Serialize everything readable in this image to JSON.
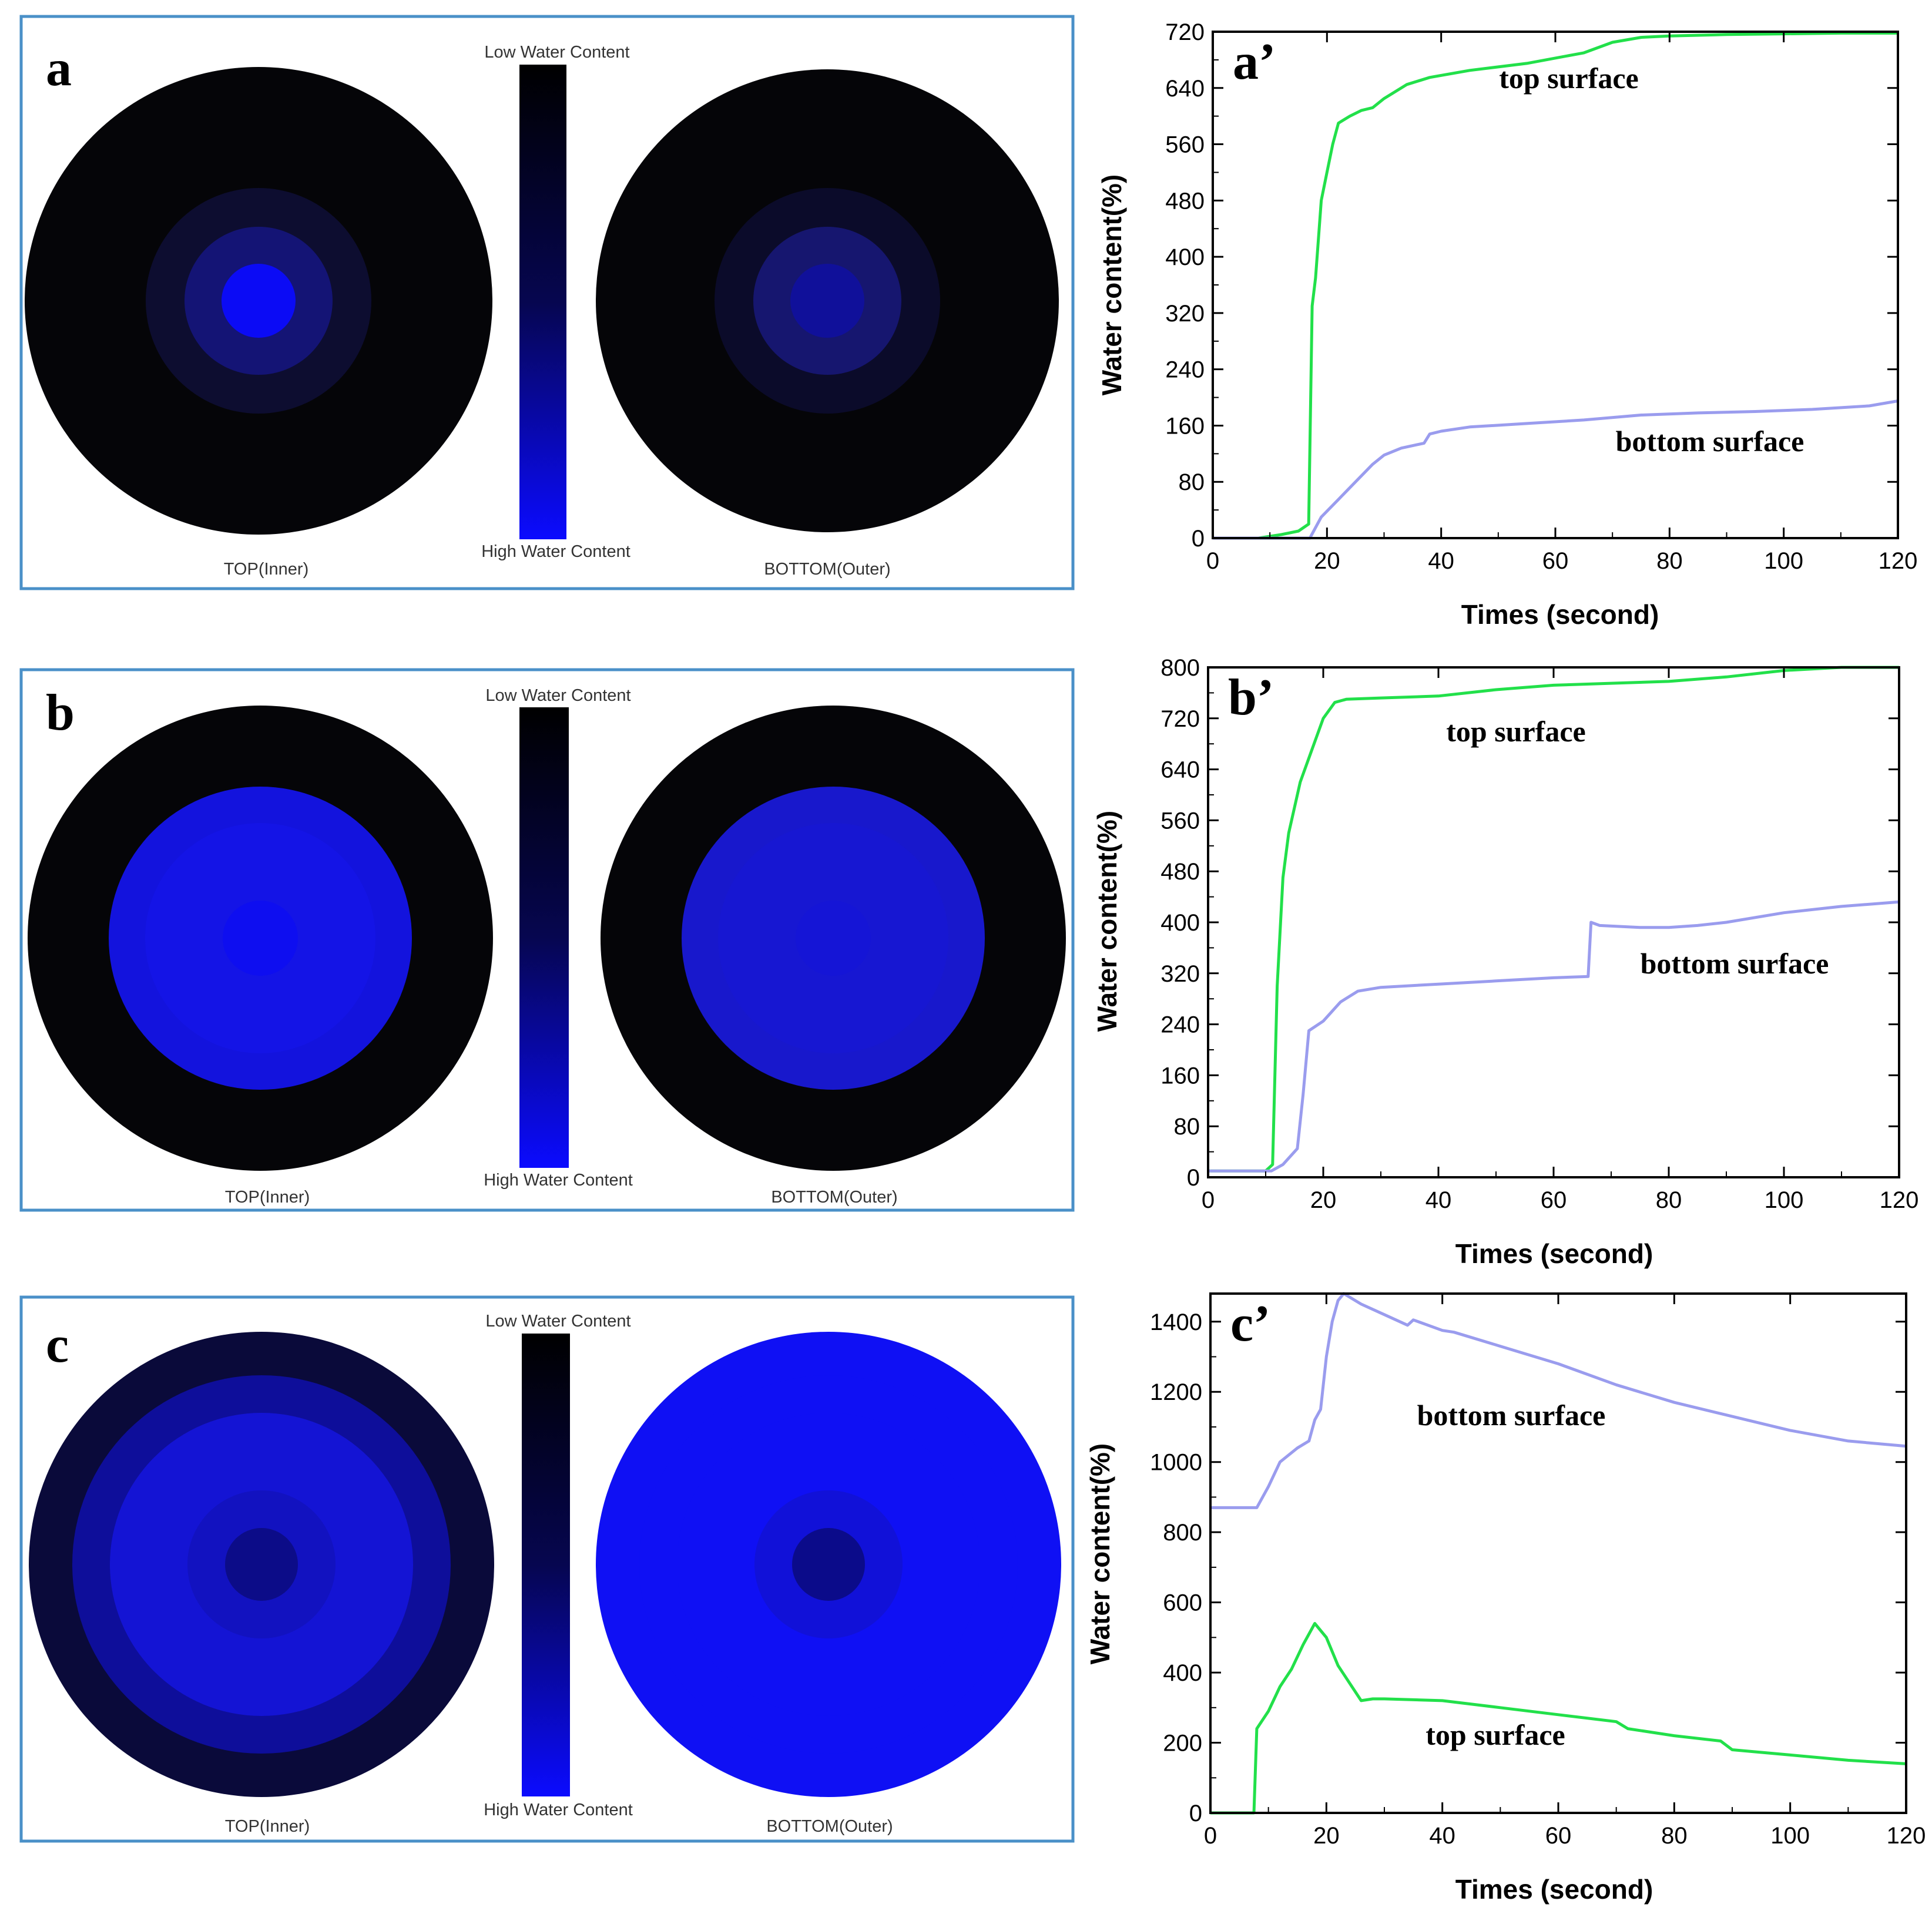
{
  "rows": [
    {
      "panel_letter": "a",
      "heatmap": {
        "colorbar_low": "Low Water Content",
        "colorbar_high": "High Water Content",
        "left_label": "TOP(Inner)",
        "right_label": "BOTTOM(Outer)",
        "left_rings": [
          "#050508",
          "#0d0d30",
          "#141475",
          "#0b0bf5"
        ],
        "right_rings": [
          "#050508",
          "#0b0b2a",
          "#16166f",
          "#10109a"
        ]
      },
      "chart_data": {
        "type": "line",
        "panel_label": "a’",
        "xlabel": "Times (second)",
        "ylabel": "Water content(%)",
        "xlim": [
          0,
          120
        ],
        "ylim": [
          0,
          720
        ],
        "xticks": [
          0,
          20,
          40,
          60,
          80,
          100,
          120
        ],
        "yticks": [
          0,
          80,
          160,
          240,
          320,
          400,
          480,
          560,
          640,
          720
        ],
        "grid": false,
        "series": [
          {
            "name": "top surface",
            "color": "#22e04a",
            "x": [
              0,
              8,
              12,
              15,
              16.8,
              17.4,
              18,
              19,
              20,
              21,
              22,
              24,
              26,
              28,
              30,
              34,
              36,
              38,
              45,
              55,
              65,
              70,
              75,
              80,
              90,
              100,
              110,
              120
            ],
            "y": [
              0,
              0,
              5,
              10,
              20,
              330,
              370,
              480,
              520,
              560,
              590,
              600,
              608,
              612,
              625,
              645,
              650,
              655,
              665,
              675,
              690,
              705,
              712,
              714,
              716,
              717,
              718,
              718
            ]
          },
          {
            "name": "bottom surface",
            "color": "#9a9cee",
            "x": [
              0,
              17,
              19,
              22,
              25,
              28,
              30,
              33,
              37,
              38,
              40,
              45,
              55,
              65,
              75,
              85,
              95,
              105,
              115,
              120
            ],
            "y": [
              0,
              0,
              30,
              55,
              80,
              105,
              118,
              128,
              135,
              148,
              152,
              158,
              163,
              168,
              175,
              178,
              180,
              183,
              188,
              195
            ]
          }
        ]
      }
    },
    {
      "panel_letter": "b",
      "heatmap": {
        "colorbar_low": "Low Water Content",
        "colorbar_high": "High Water Content",
        "left_label": "TOP(Inner)",
        "right_label": "BOTTOM(Outer)",
        "left_rings": [
          "#050508",
          "#1313dd",
          "#1414e6",
          "#0e0ef0"
        ],
        "right_rings": [
          "#050508",
          "#1818cc",
          "#1717d2",
          "#1515d6"
        ]
      },
      "chart_data": {
        "type": "line",
        "panel_label": "b’",
        "xlabel": "Times (second)",
        "ylabel": "Water content(%)",
        "xlim": [
          0,
          120
        ],
        "ylim": [
          0,
          800
        ],
        "xticks": [
          0,
          20,
          40,
          60,
          80,
          100,
          120
        ],
        "yticks": [
          0,
          80,
          160,
          240,
          320,
          400,
          480,
          560,
          640,
          720,
          800
        ],
        "grid": false,
        "series": [
          {
            "name": "top surface",
            "color": "#22e04a",
            "x": [
              0,
              10,
              11.2,
              12,
              13,
              14,
              15,
              16,
              18,
              20,
              22,
              24,
              30,
              40,
              50,
              60,
              70,
              80,
              90,
              100,
              110,
              120
            ],
            "y": [
              10,
              10,
              20,
              300,
              470,
              540,
              580,
              620,
              670,
              720,
              745,
              750,
              752,
              755,
              765,
              772,
              775,
              778,
              785,
              795,
              800,
              800
            ]
          },
          {
            "name": "bottom surface",
            "color": "#9a9cee",
            "x": [
              0,
              11,
              13,
              15.5,
              16.5,
              17.5,
              20,
              23,
              26,
              30,
              40,
              50,
              60,
              66,
              66.5,
              68,
              75,
              80,
              85,
              90,
              100,
              110,
              120
            ],
            "y": [
              10,
              10,
              20,
              45,
              130,
              230,
              245,
              275,
              292,
              298,
              303,
              308,
              313,
              315,
              400,
              395,
              392,
              392,
              395,
              400,
              415,
              425,
              432
            ]
          }
        ]
      }
    },
    {
      "panel_letter": "c",
      "heatmap": {
        "colorbar_low": "Low Water Content",
        "colorbar_high": "High Water Content",
        "left_label": "TOP(Inner)",
        "right_label": "BOTTOM(Outer)",
        "left_rings": [
          "#0a0a3a",
          "#0e0e9a",
          "#1414d4",
          "#1212c0",
          "#0c0c88"
        ],
        "right_rings": [
          "#0f10f4",
          "#0f10f4",
          "#0f10f4",
          "#1111d8",
          "#0b0b8a"
        ]
      },
      "chart_data": {
        "type": "line",
        "panel_label": "c’",
        "xlabel": "Times (second)",
        "ylabel": "Water content(%)",
        "xlim": [
          0,
          120
        ],
        "ylim": [
          0,
          1480
        ],
        "xticks": [
          0,
          20,
          40,
          60,
          80,
          100,
          120
        ],
        "yticks": [
          0,
          200,
          400,
          600,
          800,
          1000,
          1200,
          1400
        ],
        "grid": false,
        "series": [
          {
            "name": "bottom surface",
            "color": "#9a9cee",
            "x": [
              0,
              8,
              10,
              12,
              15,
              17,
              18,
              19,
              20,
              21,
              22,
              23,
              26,
              30,
              34,
              35,
              40,
              42,
              50,
              60,
              70,
              80,
              90,
              100,
              110,
              120
            ],
            "y": [
              870,
              870,
              930,
              1000,
              1040,
              1060,
              1120,
              1150,
              1300,
              1400,
              1460,
              1485,
              1450,
              1420,
              1390,
              1405,
              1375,
              1370,
              1330,
              1280,
              1220,
              1170,
              1130,
              1090,
              1060,
              1045
            ]
          },
          {
            "name": "top surface",
            "color": "#22e04a",
            "x": [
              0,
              7.5,
              8,
              10,
              12,
              14,
              16,
              18,
              20,
              22,
              24,
              26,
              28,
              30,
              40,
              50,
              60,
              70,
              72,
              80,
              88,
              90,
              100,
              110,
              120
            ],
            "y": [
              0,
              0,
              240,
              290,
              360,
              410,
              480,
              540,
              500,
              420,
              370,
              320,
              325,
              325,
              320,
              300,
              280,
              260,
              240,
              220,
              205,
              180,
              165,
              150,
              140
            ]
          }
        ]
      }
    }
  ]
}
